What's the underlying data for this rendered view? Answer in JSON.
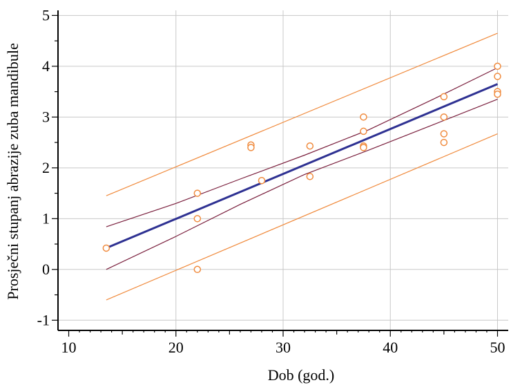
{
  "chart_data": {
    "type": "scatter",
    "xlabel": "Dob (god.)",
    "ylabel": "Prosječni stupanj abrazije zuba mandibule",
    "xlim": [
      9,
      51
    ],
    "ylim": [
      -1.2,
      5.1
    ],
    "xticks": [
      10,
      20,
      30,
      40,
      50
    ],
    "yticks": [
      -1,
      0,
      1,
      2,
      3,
      4,
      5
    ],
    "grid": true,
    "colors": {
      "points": "#f08a3c",
      "regression": "#2e3192",
      "confidence": "#7a1f3d",
      "prediction": "#f08a3c",
      "grid": "#c8c8c8"
    },
    "points": [
      {
        "x": 13.5,
        "y": 0.42
      },
      {
        "x": 22,
        "y": 1.5
      },
      {
        "x": 22,
        "y": 1.0
      },
      {
        "x": 22,
        "y": 0.0
      },
      {
        "x": 27,
        "y": 2.45
      },
      {
        "x": 27,
        "y": 2.4
      },
      {
        "x": 28,
        "y": 1.75
      },
      {
        "x": 32.5,
        "y": 2.43
      },
      {
        "x": 32.5,
        "y": 1.83
      },
      {
        "x": 37.5,
        "y": 3.0
      },
      {
        "x": 37.5,
        "y": 2.72
      },
      {
        "x": 37.5,
        "y": 2.43
      },
      {
        "x": 37.5,
        "y": 2.4
      },
      {
        "x": 45,
        "y": 3.4
      },
      {
        "x": 45,
        "y": 3.0
      },
      {
        "x": 45,
        "y": 2.67
      },
      {
        "x": 45,
        "y": 2.5
      },
      {
        "x": 50,
        "y": 4.0
      },
      {
        "x": 50,
        "y": 3.8
      },
      {
        "x": 50,
        "y": 3.5
      },
      {
        "x": 50,
        "y": 3.45
      }
    ],
    "regression_line": [
      {
        "x": 13.5,
        "y": 0.42
      },
      {
        "x": 50,
        "y": 3.65
      }
    ],
    "confidence_upper": [
      {
        "x": 13.5,
        "y": 0.84
      },
      {
        "x": 20,
        "y": 1.3
      },
      {
        "x": 26,
        "y": 1.78
      },
      {
        "x": 32,
        "y": 2.25
      },
      {
        "x": 38,
        "y": 2.75
      },
      {
        "x": 44,
        "y": 3.35
      },
      {
        "x": 50,
        "y": 3.97
      }
    ],
    "confidence_lower": [
      {
        "x": 13.5,
        "y": 0.0
      },
      {
        "x": 20,
        "y": 0.65
      },
      {
        "x": 26,
        "y": 1.28
      },
      {
        "x": 32,
        "y": 1.87
      },
      {
        "x": 38,
        "y": 2.35
      },
      {
        "x": 44,
        "y": 2.85
      },
      {
        "x": 50,
        "y": 3.35
      }
    ],
    "prediction_upper": [
      {
        "x": 13.5,
        "y": 1.45
      },
      {
        "x": 50,
        "y": 4.65
      }
    ],
    "prediction_lower": [
      {
        "x": 13.5,
        "y": -0.6
      },
      {
        "x": 50,
        "y": 2.67
      }
    ]
  }
}
